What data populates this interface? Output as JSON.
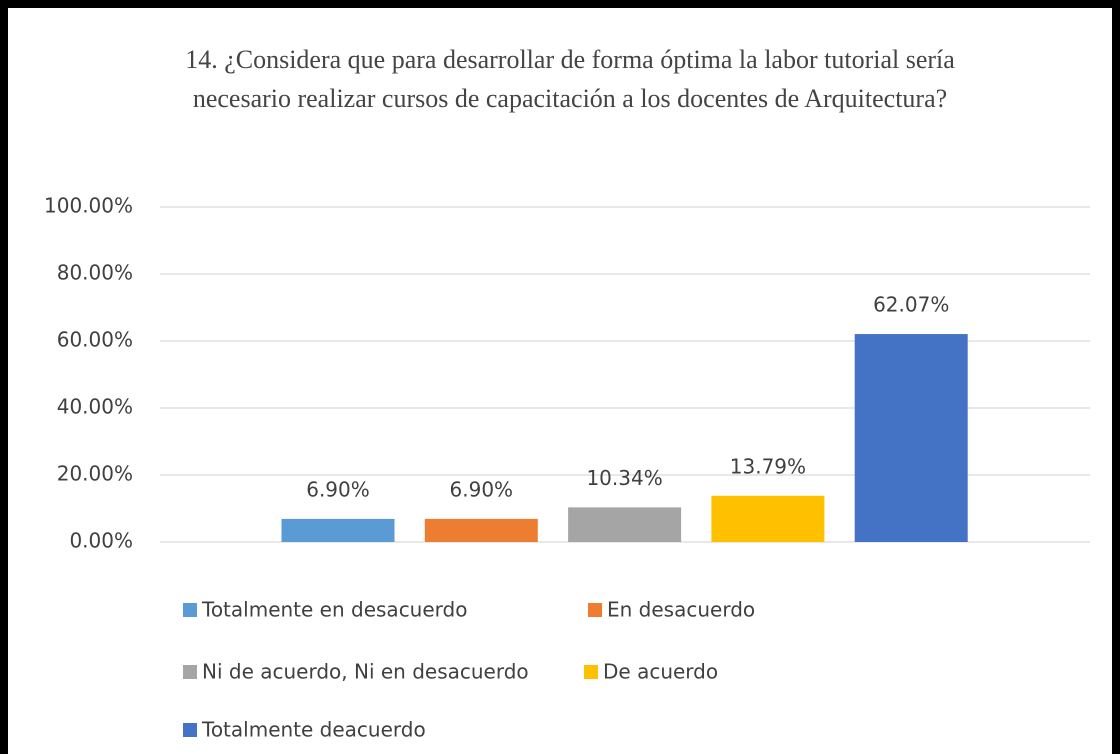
{
  "chart_data": {
    "type": "bar",
    "title": "14. ¿Considera que para desarrollar de forma óptima la labor tutorial sería necesario realizar cursos de capacitación a los docentes de Arquitectura?",
    "series": [
      {
        "name": "Totalmente en desacuerdo",
        "color": "#5b9bd5",
        "values": [
          6.9
        ],
        "value_labels": [
          "6.90%"
        ]
      },
      {
        "name": "En desacuerdo",
        "color": "#ed7d31",
        "values": [
          6.9
        ],
        "value_labels": [
          "6.90%"
        ]
      },
      {
        "name": "Ni de acuerdo, Ni en desacuerdo",
        "color": "#a5a5a5",
        "values": [
          10.34
        ],
        "value_labels": [
          "10.34%"
        ]
      },
      {
        "name": "De acuerdo",
        "color": "#ffc000",
        "values": [
          13.79
        ],
        "value_labels": [
          "13.79%"
        ]
      },
      {
        "name": "Totalmente deacuerdo",
        "color": "#4472c4",
        "values": [
          62.07
        ],
        "value_labels": [
          "62.07%"
        ]
      }
    ],
    "ylim": [
      0,
      100
    ],
    "yticks": [
      {
        "value": 0,
        "label": "0.00%"
      },
      {
        "value": 20,
        "label": "20.00%"
      },
      {
        "value": 40,
        "label": "40.00%"
      },
      {
        "value": 60,
        "label": "60.00%"
      },
      {
        "value": 80,
        "label": "80.00%"
      },
      {
        "value": 100,
        "label": "100.00%"
      }
    ],
    "grid": true,
    "legend": "bottom"
  }
}
